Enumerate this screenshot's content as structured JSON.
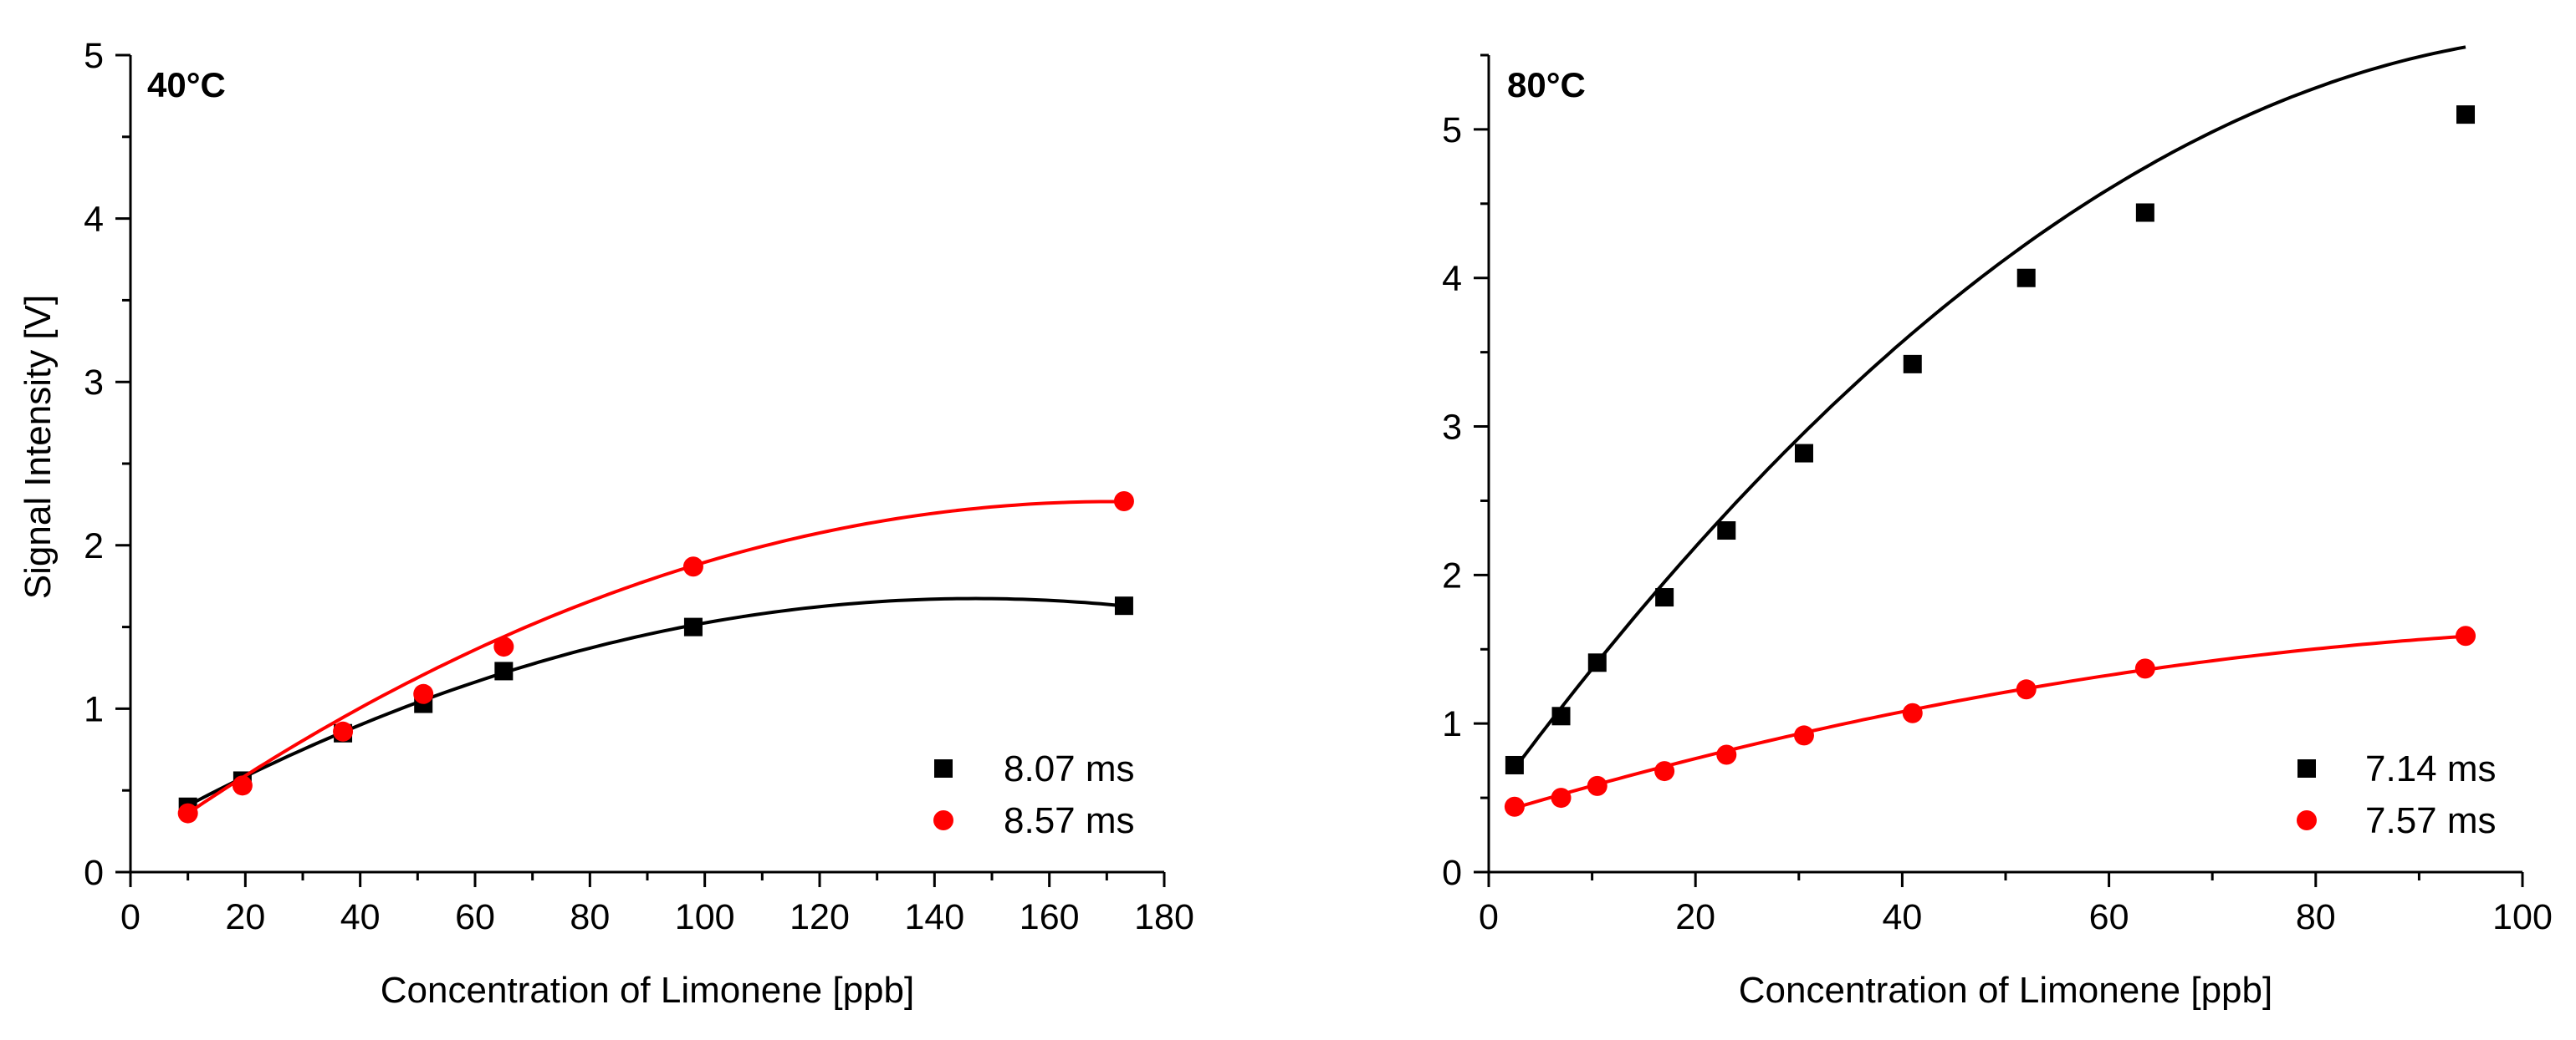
{
  "chart_data": [
    {
      "type": "scatter",
      "title": "40°C",
      "xlabel": "Concentration of Limonene [ppb]",
      "ylabel": "Signal Intensity [V]",
      "xlim": [
        0,
        180
      ],
      "ylim": [
        0,
        5
      ],
      "xticks": [
        0,
        20,
        40,
        60,
        80,
        100,
        120,
        140,
        160,
        180
      ],
      "yticks": [
        0,
        1,
        2,
        3,
        4,
        5
      ],
      "legend_position": "bottom-right",
      "series": [
        {
          "name": "8.07 ms",
          "marker": "square",
          "color": "#000000",
          "x": [
            10,
            19.5,
            37,
            51,
            65,
            98,
            173
          ],
          "y": [
            0.4,
            0.56,
            0.85,
            1.03,
            1.23,
            1.5,
            1.63
          ],
          "fit": [
            0.2156,
            0.01983,
            -6.74e-05
          ]
        },
        {
          "name": "8.57 ms",
          "marker": "circle",
          "color": "#ff0000",
          "x": [
            10,
            19.5,
            37,
            51,
            65,
            98,
            173
          ],
          "y": [
            0.36,
            0.53,
            0.86,
            1.09,
            1.38,
            1.87,
            2.27
          ],
          "fit": [
            0.1162,
            0.02515,
            -7.35e-05
          ]
        }
      ]
    },
    {
      "type": "scatter",
      "title": "80°C",
      "xlabel": "Concentration of Limonene [ppb]",
      "ylabel": "",
      "xlim": [
        0,
        100
      ],
      "ylim": [
        0,
        5.5
      ],
      "xticks": [
        0,
        20,
        40,
        60,
        80,
        100
      ],
      "yticks": [
        0,
        1,
        2,
        3,
        4,
        5
      ],
      "legend_position": "bottom-right",
      "series": [
        {
          "name": "7.14 ms",
          "marker": "square",
          "color": "#000000",
          "x": [
            2.5,
            7,
            10.5,
            17,
            23,
            30.5,
            41,
            52,
            63.5,
            94.5
          ],
          "y": [
            0.72,
            1.05,
            1.41,
            1.85,
            2.3,
            2.82,
            3.42,
            4.0,
            4.44,
            5.1
          ],
          "fit": [
            0.4605,
            0.0952,
            -0.000437
          ]
        },
        {
          "name": "7.57 ms",
          "marker": "circle",
          "color": "#ff0000",
          "x": [
            2.5,
            7,
            10.5,
            17,
            23,
            30.5,
            41,
            52,
            63.5,
            94.5
          ],
          "y": [
            0.44,
            0.5,
            0.58,
            0.68,
            0.79,
            0.92,
            1.07,
            1.23,
            1.37,
            1.59
          ],
          "fit": [
            0.38,
            0.02095,
            -8.65e-05
          ]
        }
      ]
    }
  ]
}
